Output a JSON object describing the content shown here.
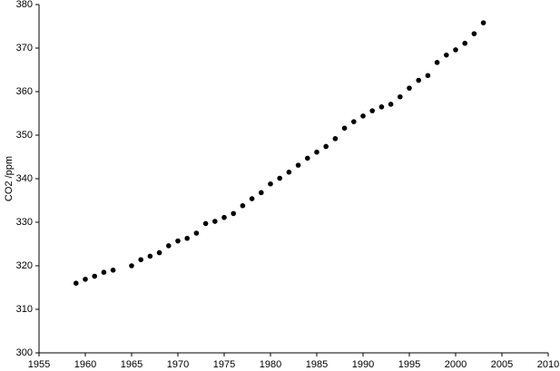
{
  "chart_data": {
    "type": "scatter",
    "y_label": "CO2 /ppm",
    "x": [
      1959,
      1960,
      1961,
      1962,
      1963,
      1965,
      1966,
      1967,
      1968,
      1969,
      1970,
      1971,
      1972,
      1973,
      1974,
      1975,
      1976,
      1977,
      1978,
      1979,
      1980,
      1981,
      1982,
      1983,
      1984,
      1985,
      1986,
      1987,
      1988,
      1989,
      1990,
      1991,
      1992,
      1993,
      1994,
      1995,
      1996,
      1997,
      1998,
      1999,
      2000,
      2001,
      2002,
      2003
    ],
    "values": [
      316.0,
      316.9,
      317.6,
      318.5,
      319.0,
      320.0,
      321.4,
      322.2,
      323.0,
      324.6,
      325.7,
      326.3,
      327.5,
      329.7,
      330.2,
      331.1,
      332.0,
      333.8,
      335.4,
      336.8,
      338.8,
      340.1,
      341.5,
      343.1,
      344.7,
      346.1,
      347.4,
      349.2,
      351.6,
      353.1,
      354.4,
      355.6,
      356.5,
      357.1,
      358.8,
      360.8,
      362.6,
      363.7,
      366.7,
      368.4,
      369.6,
      371.1,
      373.3,
      375.8
    ],
    "color": "#000000",
    "xlim": [
      1955,
      2010
    ],
    "xticks": [
      1955,
      1960,
      1965,
      1970,
      1975,
      1980,
      1985,
      1990,
      1995,
      2000,
      2005,
      2010
    ],
    "ylim": [
      300,
      380
    ],
    "yticks": [
      300,
      310,
      320,
      330,
      340,
      350,
      360,
      370,
      380
    ],
    "grid": false
  }
}
